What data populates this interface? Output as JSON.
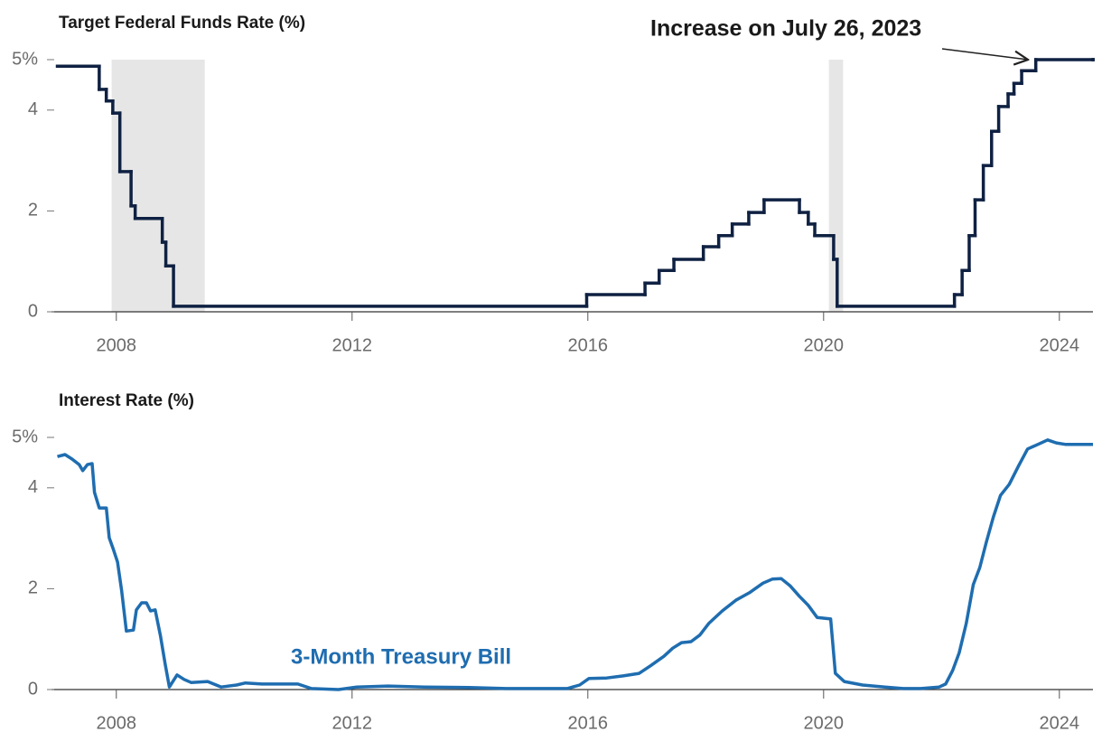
{
  "chart_data": [
    {
      "type": "step",
      "title": "Target Federal Funds Rate (%)",
      "annotation": "Increase on July 26, 2023",
      "xlim": [
        2006.9,
        2024.57
      ],
      "xticks": [
        2008,
        2012,
        2016,
        2020,
        2024
      ],
      "ylim": [
        0,
        5
      ],
      "yticks": [
        0,
        2,
        4,
        {
          "value": 5,
          "label": "5%"
        }
      ],
      "shaded_regions": [
        [
          2007.92,
          2009.5
        ],
        [
          2020.09,
          2020.33
        ]
      ],
      "shade_color": "#e6e6e6",
      "series": [
        {
          "color": "#0f2142",
          "x": [
            2007.0,
            2007.71,
            2007.83,
            2007.94,
            2008.06,
            2008.25,
            2008.32,
            2008.78,
            2008.84,
            2008.97,
            2015.98,
            2016.97,
            2017.21,
            2017.46,
            2017.96,
            2018.22,
            2018.45,
            2018.73,
            2018.99,
            2019.59,
            2019.74,
            2019.85,
            2020.17,
            2020.23,
            2022.22,
            2022.35,
            2022.47,
            2022.57,
            2022.71,
            2022.85,
            2022.97,
            2023.13,
            2023.23,
            2023.36,
            2023.6,
            2024.57
          ],
          "values": [
            4.87,
            4.41,
            4.18,
            3.94,
            2.78,
            2.1,
            1.85,
            1.38,
            0.91,
            0.11,
            0.34,
            0.57,
            0.82,
            1.04,
            1.29,
            1.51,
            1.74,
            1.97,
            2.22,
            1.97,
            1.74,
            1.51,
            1.04,
            0.11,
            0.34,
            0.82,
            1.51,
            2.22,
            2.9,
            3.58,
            4.07,
            4.32,
            4.53,
            4.78,
            5.0,
            5.0
          ]
        }
      ]
    },
    {
      "type": "line",
      "title": "Interest Rate (%)",
      "xlim": [
        2006.9,
        2024.57
      ],
      "xticks": [
        2008,
        2012,
        2016,
        2020,
        2024
      ],
      "ylim": [
        0,
        5
      ],
      "yticks": [
        0,
        2,
        4,
        {
          "value": 5,
          "label": "5%"
        }
      ],
      "series": [
        {
          "name": "3-Month Treasury Bill",
          "color": "#1f6db0",
          "x": [
            2007.0,
            2007.13,
            2007.25,
            2007.37,
            2007.43,
            2007.51,
            2007.59,
            2007.63,
            2007.71,
            2007.83,
            2007.88,
            2007.95,
            2008.02,
            2008.09,
            2008.17,
            2008.29,
            2008.34,
            2008.43,
            2008.51,
            2008.58,
            2008.66,
            2008.75,
            2008.83,
            2008.9,
            2009.03,
            2009.15,
            2009.27,
            2009.55,
            2009.78,
            2010.04,
            2010.19,
            2010.47,
            2010.77,
            2011.08,
            2011.31,
            2011.77,
            2012.08,
            2012.61,
            2013.23,
            2013.99,
            2014.61,
            2015.22,
            2015.65,
            2015.86,
            2016.02,
            2016.32,
            2016.6,
            2016.87,
            2017.06,
            2017.29,
            2017.44,
            2017.59,
            2017.75,
            2017.9,
            2018.05,
            2018.28,
            2018.51,
            2018.74,
            2018.97,
            2019.13,
            2019.28,
            2019.43,
            2019.59,
            2019.74,
            2019.89,
            2020.12,
            2020.2,
            2020.35,
            2020.66,
            2021.04,
            2021.35,
            2021.65,
            2021.96,
            2022.07,
            2022.19,
            2022.3,
            2022.42,
            2022.54,
            2022.65,
            2022.76,
            2022.88,
            2023.0,
            2023.15,
            2023.31,
            2023.46,
            2023.65,
            2023.8,
            2023.95,
            2024.11,
            2024.34,
            2024.57
          ],
          "values": [
            4.62,
            4.66,
            4.57,
            4.46,
            4.34,
            4.46,
            4.48,
            3.91,
            3.6,
            3.6,
            3.01,
            2.78,
            2.53,
            1.97,
            1.16,
            1.18,
            1.58,
            1.72,
            1.72,
            1.56,
            1.58,
            1.06,
            0.5,
            0.05,
            0.29,
            0.2,
            0.14,
            0.16,
            0.05,
            0.09,
            0.13,
            0.11,
            0.11,
            0.11,
            0.02,
            0.0,
            0.05,
            0.07,
            0.05,
            0.04,
            0.02,
            0.02,
            0.02,
            0.09,
            0.22,
            0.23,
            0.27,
            0.32,
            0.47,
            0.66,
            0.82,
            0.93,
            0.95,
            1.08,
            1.31,
            1.56,
            1.77,
            1.92,
            2.11,
            2.19,
            2.2,
            2.06,
            1.85,
            1.67,
            1.43,
            1.4,
            0.32,
            0.16,
            0.09,
            0.05,
            0.02,
            0.02,
            0.05,
            0.11,
            0.38,
            0.73,
            1.31,
            2.08,
            2.42,
            2.92,
            3.42,
            3.85,
            4.07,
            4.44,
            4.77,
            4.87,
            4.95,
            4.89,
            4.86,
            4.86,
            4.86
          ]
        }
      ]
    }
  ]
}
